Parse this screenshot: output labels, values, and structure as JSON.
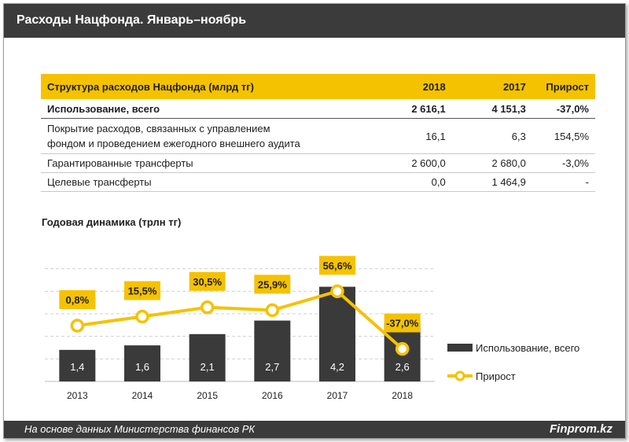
{
  "header": {
    "title": "Расходы Нацфонда. Январь–ноябрь"
  },
  "table": {
    "columns": [
      "Структура расходов Нацфонда (млрд тг)",
      "2018",
      "2017",
      "Прирост"
    ],
    "rows": [
      {
        "label": "Использование, всего",
        "v2018": "2 616,1",
        "v2017": "4 151,3",
        "growth": "-37,0%"
      },
      {
        "label_line1": "Покрытие расходов, связанных с управлением",
        "label_line2": "фондом и проведением ежегодного внешнего аудита",
        "v2018": "16,1",
        "v2017": "6,3",
        "growth": "154,5%"
      },
      {
        "label": "Гарантированные трансферты",
        "v2018": "2 600,0",
        "v2017": "2 680,0",
        "growth": "-3,0%"
      },
      {
        "label": "Целевые трансферты",
        "v2018": "0,0",
        "v2017": "1 464,9",
        "growth": "-"
      }
    ]
  },
  "chart_title": "Годовая  динамика  (трлн тг)",
  "chart_data": {
    "type": "bar",
    "title": "Годовая  динамика  (трлн тг)",
    "categories": [
      "2013",
      "2014",
      "2015",
      "2016",
      "2017",
      "2018"
    ],
    "series": [
      {
        "name": "Использование, всего",
        "type": "bar",
        "values": [
          1.4,
          1.6,
          2.1,
          2.7,
          4.2,
          2.6
        ],
        "labels": [
          "1,4",
          "1,6",
          "2,1",
          "2,7",
          "4,2",
          "2,6"
        ]
      },
      {
        "name": "Прирост",
        "type": "line",
        "unit": "%",
        "values": [
          0.8,
          15.5,
          30.5,
          25.9,
          56.6,
          -37.0
        ],
        "labels": [
          "0,8%",
          "15,5%",
          "30,5%",
          "25,9%",
          "56,6%",
          "-37,0%"
        ]
      }
    ],
    "bar_ylim": [
      0,
      6
    ],
    "line_ylim": [
      -90,
      130
    ],
    "grid": true,
    "legend": "right"
  },
  "colors": {
    "bar": "#3a3a3a",
    "line": "#f5c200",
    "header": "#3b3b3b",
    "table_header": "#f5c200"
  },
  "footer": {
    "source": "На основе данных  Министерства финансов РК",
    "brand": "Finprom.kz"
  }
}
